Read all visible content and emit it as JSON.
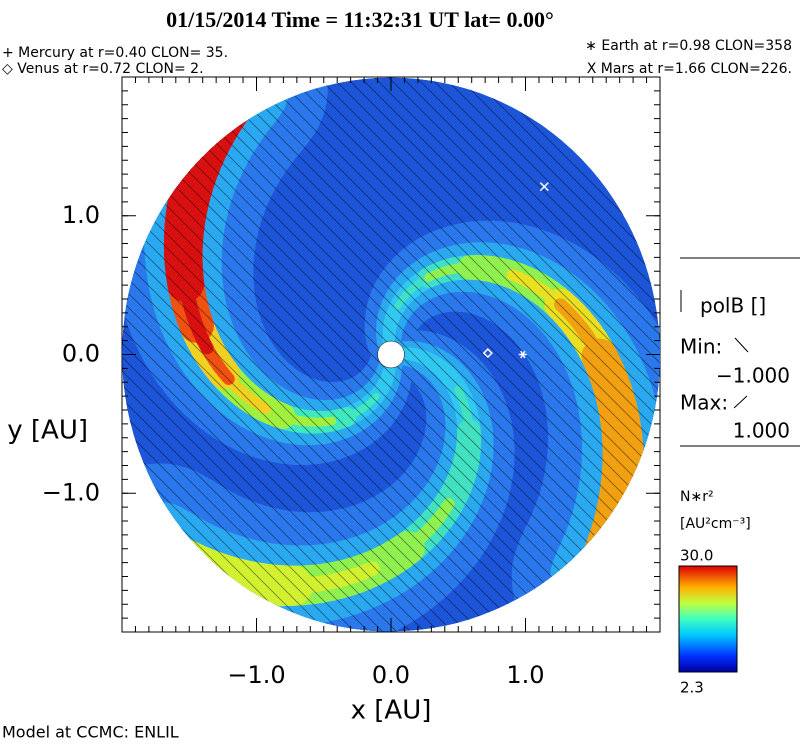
{
  "chart_data": {
    "type": "contour",
    "title": "01/15/2014 Time = 11:32:31 UT lat= 0.00°",
    "legend_left": [
      "+ Mercury at r=0.40 CLON= 35.",
      "◇ Venus at r=0.72 CLON=  2."
    ],
    "legend_right": [
      "∗ Earth at  r=0.98 CLON=358",
      "X Mars at r=1.66 CLON=226."
    ],
    "xlabel": "x [AU]",
    "ylabel": "y [AU]",
    "xlim": [
      -2.0,
      2.0
    ],
    "ylim": [
      -2.0,
      2.0
    ],
    "xticks": [
      {
        "value": -1,
        "label": "−1.0"
      },
      {
        "value": 0,
        "label": "0.0"
      },
      {
        "value": 1,
        "label": "1.0"
      }
    ],
    "yticks": [
      {
        "value": -1,
        "label": "−1.0"
      },
      {
        "value": 0,
        "label": "0.0"
      },
      {
        "value": 1,
        "label": "1.0"
      }
    ],
    "points": {
      "x": [
        0.72,
        0.98,
        1.14
      ],
      "y": [
        0.01,
        0.0,
        1.21
      ]
    },
    "overlay": {
      "label": "polB []",
      "min_label": "Min:",
      "min": {
        "value": -1,
        "label": "−1.000"
      },
      "max_label": "Max:",
      "max": {
        "value": 1,
        "label": "1.000"
      }
    },
    "colorbar": {
      "label": "N∗r²",
      "units": "[AU²cm⁻³]",
      "range": [
        2.3,
        {
          "value": 30,
          "label": "30.0"
        }
      ]
    },
    "footer": "Model at CCMC: ENLIL"
  }
}
